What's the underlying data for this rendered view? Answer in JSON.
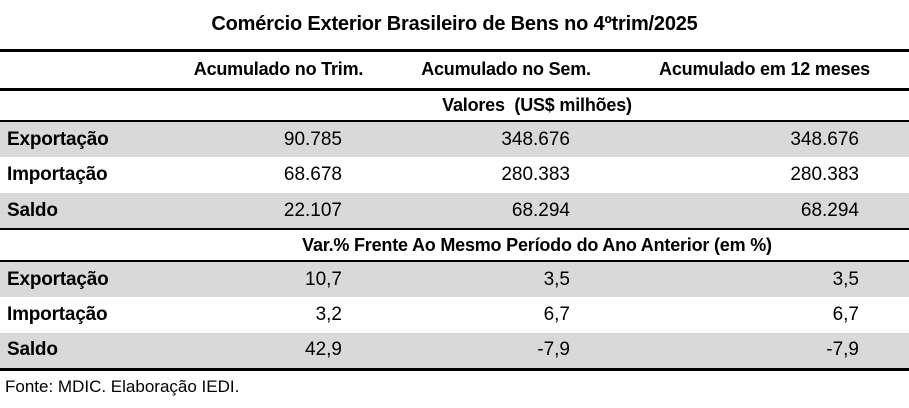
{
  "title": "Comércio Exterior Brasileiro de Bens no 4ºtrim/2025",
  "columns": [
    "Acumulado no Trim.",
    "Acumulado no Sem.",
    "Acumulado em 12 meses"
  ],
  "sections": [
    {
      "header": "Valores  (US$ milhões)",
      "rows": [
        {
          "label": "Exportação",
          "values": [
            "90.785",
            "348.676",
            "348.676"
          ]
        },
        {
          "label": "Importação",
          "values": [
            "68.678",
            "280.383",
            "280.383"
          ]
        },
        {
          "label": "Saldo",
          "values": [
            "22.107",
            "68.294",
            "68.294"
          ]
        }
      ]
    },
    {
      "header": "Var.% Frente Ao Mesmo Período do Ano Anterior (em %)",
      "rows": [
        {
          "label": "Exportação",
          "values": [
            "10,7",
            "3,5",
            "3,5"
          ]
        },
        {
          "label": "Importação",
          "values": [
            "3,2",
            "6,7",
            "6,7"
          ]
        },
        {
          "label": "Saldo",
          "values": [
            "42,9",
            "-7,9",
            "-7,9"
          ]
        }
      ]
    }
  ],
  "footer": "Fonte: MDIC. Elaboração IEDI.",
  "colors": {
    "row_shade": "#d9d9d9",
    "border": "#000000",
    "text": "#000000",
    "background": "#ffffff"
  },
  "chart_data": {
    "type": "table",
    "title": "Comércio Exterior Brasileiro de Bens no 4ºtrim/2025",
    "columns": [
      "",
      "Acumulado no Trim.",
      "Acumulado no Sem.",
      "Acumulado em 12 meses"
    ],
    "sections": [
      {
        "header": "Valores (US$ milhões)",
        "rows": [
          [
            "Exportação",
            90785,
            348676,
            348676
          ],
          [
            "Importação",
            68678,
            280383,
            280383
          ],
          [
            "Saldo",
            22107,
            68294,
            68294
          ]
        ]
      },
      {
        "header": "Var.% Frente Ao Mesmo Período do Ano Anterior (em %)",
        "rows": [
          [
            "Exportação",
            10.7,
            3.5,
            3.5
          ],
          [
            "Importação",
            3.2,
            6.7,
            6.7
          ],
          [
            "Saldo",
            42.9,
            -7.9,
            -7.9
          ]
        ]
      }
    ],
    "source": "Fonte: MDIC. Elaboração IEDI."
  }
}
